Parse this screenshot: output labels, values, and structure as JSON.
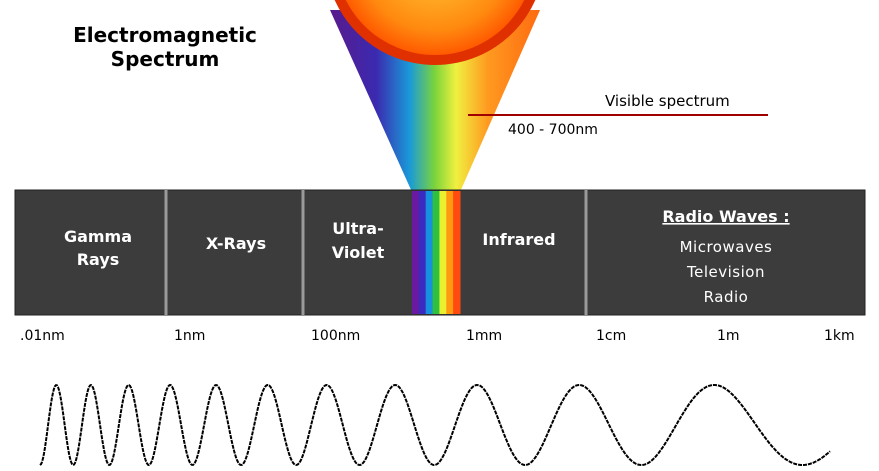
{
  "title": [
    "Electromagnetic",
    "Spectrum"
  ],
  "visible": {
    "label": "Visible spectrum",
    "range": "400 - 700nm"
  },
  "bands": [
    {
      "lines": [
        "Gamma",
        "Rays"
      ]
    },
    {
      "lines": [
        "X-Rays"
      ]
    },
    {
      "lines": [
        "Ultra-",
        "Violet"
      ]
    },
    {
      "lines": [
        "Infrared"
      ]
    },
    {
      "lines": [
        "Radio Waves :",
        "Microwaves",
        "Television",
        "Radio"
      ]
    }
  ],
  "scale": [
    ".01nm",
    "1nm",
    "100nm",
    "1mm",
    "1cm",
    "1m",
    "1km"
  ]
}
